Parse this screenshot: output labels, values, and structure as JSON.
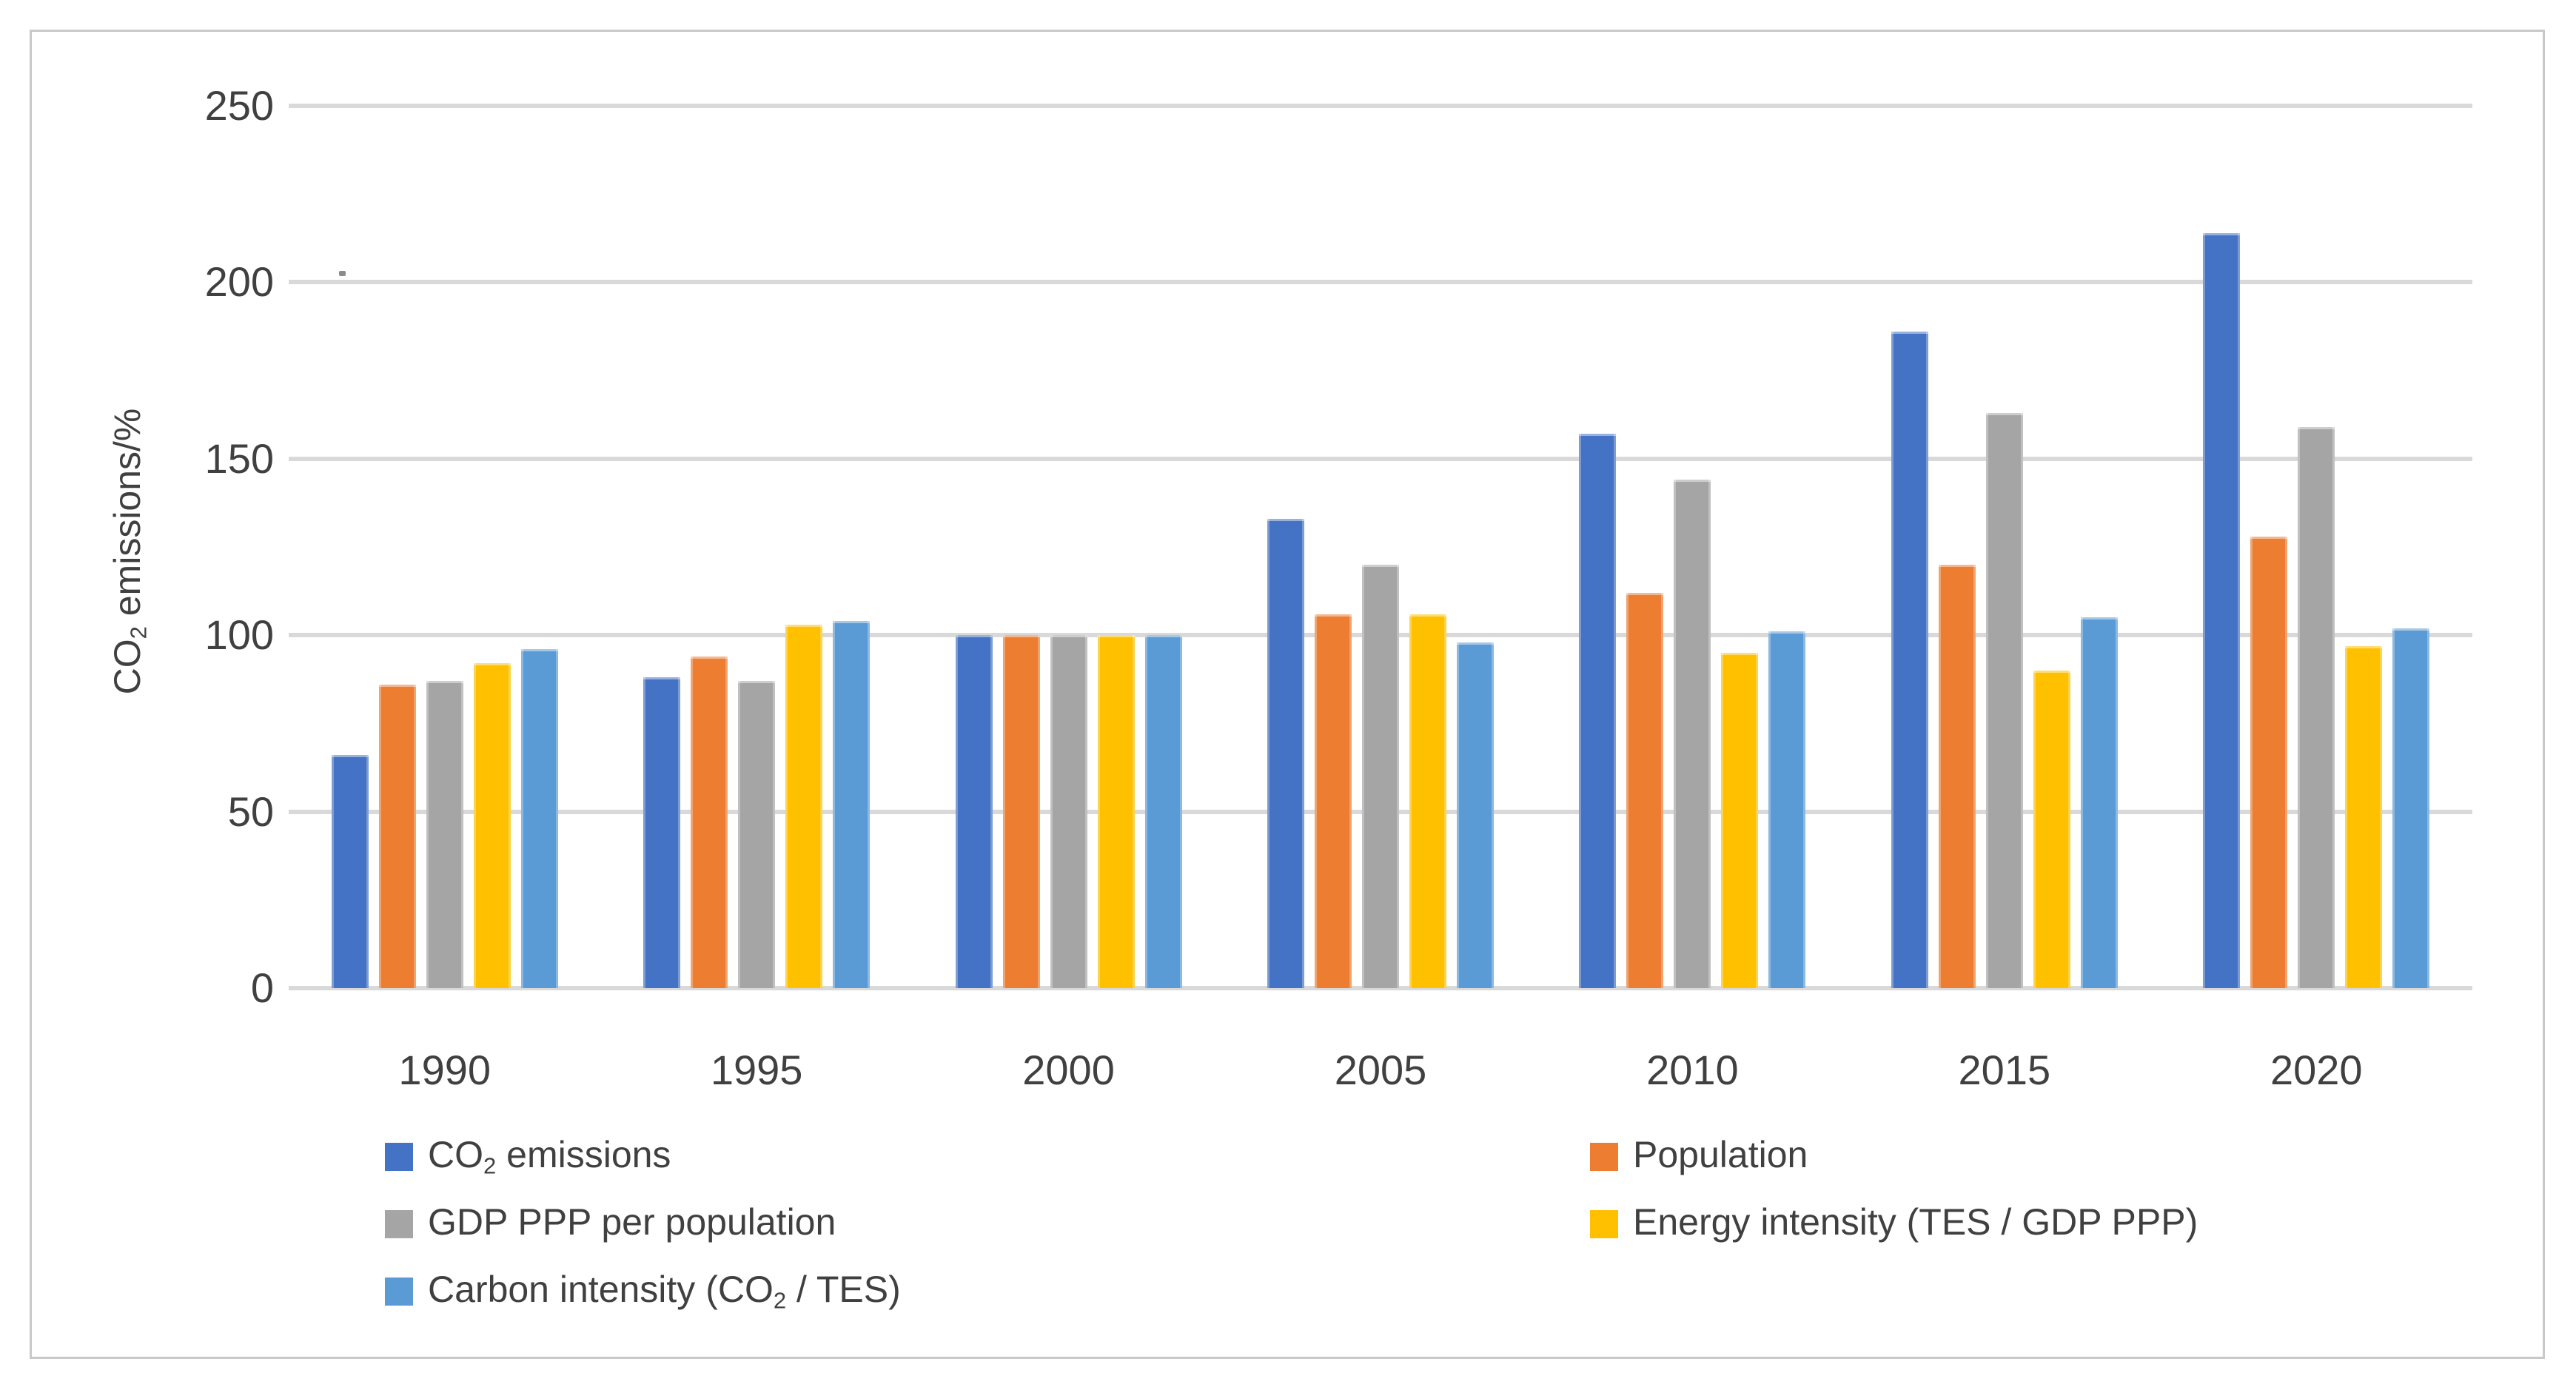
{
  "axis": {
    "y_title_pre": "CO",
    "y_title_sub": "2",
    "y_title_post": " emissions/%"
  },
  "legend": {
    "left": [
      {
        "id": "co2-emissions",
        "pre": "CO",
        "sub": "2",
        "post": " emissions",
        "color": "#4472C4"
      },
      {
        "id": "gdp-ppp-per-population",
        "pre": "GDP PPP per population",
        "sub": "",
        "post": "",
        "color": "#A5A5A5"
      },
      {
        "id": "carbon-intensity",
        "pre": "Carbon intensity (CO",
        "sub": "2",
        "post": " / TES)",
        "color": "#5B9BD5"
      }
    ],
    "right": [
      {
        "id": "population",
        "pre": "Population",
        "sub": "",
        "post": "",
        "color": "#ED7D31"
      },
      {
        "id": "energy-intensity",
        "pre": "Energy intensity (TES / GDP PPP)",
        "sub": "",
        "post": "",
        "color": "#FFC000"
      }
    ]
  },
  "colors": {
    "gridline": "#d9d9d9",
    "text": "#404040",
    "frame_border": "#c9c9c9"
  },
  "chart_data": {
    "type": "bar",
    "title": "",
    "ylabel": "CO₂ emissions/%",
    "xlabel": "",
    "ylim": [
      0,
      250
    ],
    "y_ticks": [
      0,
      50,
      100,
      150,
      200,
      250
    ],
    "grid": "horizontal",
    "legend_position": "bottom-two-columns",
    "categories": [
      "1990",
      "1995",
      "2000",
      "2005",
      "2010",
      "2015",
      "2020"
    ],
    "series": [
      {
        "id": "co2",
        "name": "CO₂ emissions",
        "color": "#4472C4",
        "values": [
          66,
          88,
          100,
          133,
          157,
          186,
          214
        ]
      },
      {
        "id": "population",
        "name": "Population",
        "color": "#ED7D31",
        "values": [
          86,
          94,
          100,
          106,
          112,
          120,
          128
        ]
      },
      {
        "id": "gdp",
        "name": "GDP PPP per population",
        "color": "#A5A5A5",
        "values": [
          87,
          87,
          100,
          120,
          144,
          163,
          159
        ]
      },
      {
        "id": "energy",
        "name": "Energy intensity (TES / GDP PPP)",
        "color": "#FFC000",
        "values": [
          92,
          103,
          100,
          106,
          95,
          90,
          97
        ]
      },
      {
        "id": "carbon",
        "name": "Carbon intensity (CO₂ / TES)",
        "color": "#5B9BD5",
        "values": [
          96,
          104,
          100,
          98,
          101,
          105,
          102
        ]
      }
    ]
  }
}
